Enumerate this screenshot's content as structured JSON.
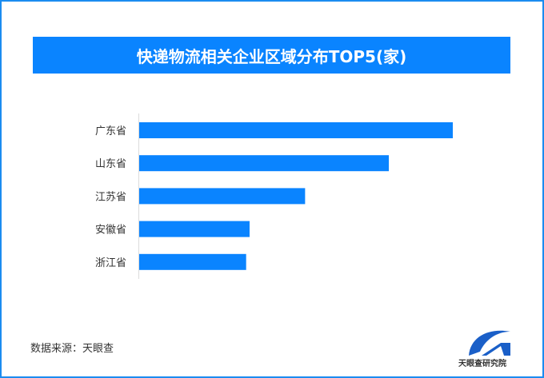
{
  "title": "快递物流相关企业区域分布TOP5(家)",
  "source": "数据来源：天眼查",
  "logo_text": "天眼查研究院",
  "colors": {
    "bar": "#0a84ff",
    "frame": "#1b8cf0",
    "title_bg": "#0a84ff"
  },
  "chart_data": {
    "type": "bar",
    "orientation": "horizontal",
    "title": "快递物流相关企业区域分布TOP5(家)",
    "categories": [
      "广东省",
      "山东省",
      "江苏省",
      "安徽省",
      "浙江省"
    ],
    "values": [
      100,
      79.6,
      52.9,
      35.2,
      34.1
    ],
    "value_note_scale": "relative to largest bar; no axis values printed",
    "xlabel": "",
    "ylabel": "",
    "grid": false,
    "legend": "none"
  }
}
